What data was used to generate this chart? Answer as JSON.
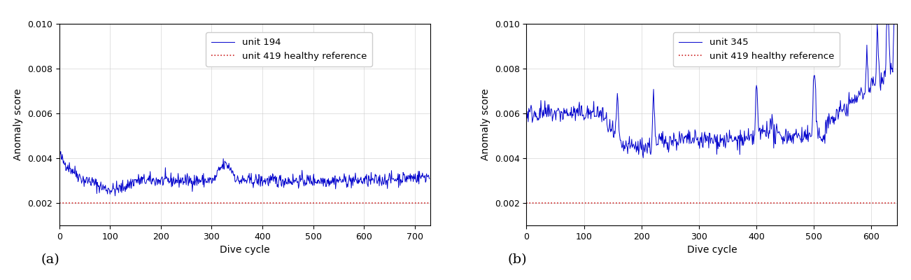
{
  "panel_a": {
    "label": "unit 194",
    "ref_label": "unit 419 healthy reference",
    "ref_value": 0.002,
    "n_points": 730,
    "xlim": [
      0,
      730
    ],
    "ylim": [
      0.001,
      0.01
    ],
    "yticks": [
      0.002,
      0.004,
      0.006,
      0.008,
      0.01
    ],
    "xticks": [
      0,
      100,
      200,
      300,
      400,
      500,
      600,
      700
    ],
    "xlabel": "Dive cycle",
    "ylabel": "Anomaly score",
    "subtitle": "(a)"
  },
  "panel_b": {
    "label": "unit 345",
    "ref_label": "unit 419 healthy reference",
    "ref_value": 0.002,
    "n_points": 645,
    "xlim": [
      0,
      645
    ],
    "ylim": [
      0.001,
      0.01
    ],
    "yticks": [
      0.002,
      0.004,
      0.006,
      0.008,
      0.01
    ],
    "xticks": [
      0,
      100,
      200,
      300,
      400,
      500,
      600
    ],
    "xlabel": "Dive cycle",
    "ylabel": "Anomaly score",
    "subtitle": "(b)"
  },
  "line_color": "#0000cc",
  "ref_color": "#cc2222",
  "line_width": 0.7,
  "ref_linewidth": 1.2,
  "legend_fontsize": 9.5,
  "axis_fontsize": 10,
  "tick_fontsize": 9,
  "subtitle_fontsize": 14,
  "fig_bg": "#ffffff"
}
